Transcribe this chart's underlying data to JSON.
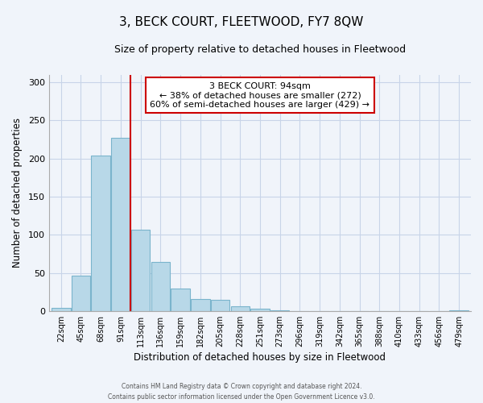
{
  "title": "3, BECK COURT, FLEETWOOD, FY7 8QW",
  "subtitle": "Size of property relative to detached houses in Fleetwood",
  "xlabel": "Distribution of detached houses by size in Fleetwood",
  "ylabel": "Number of detached properties",
  "footer_line1": "Contains HM Land Registry data © Crown copyright and database right 2024.",
  "footer_line2": "Contains public sector information licensed under the Open Government Licence v3.0.",
  "bar_labels": [
    "22sqm",
    "45sqm",
    "68sqm",
    "91sqm",
    "113sqm",
    "136sqm",
    "159sqm",
    "182sqm",
    "205sqm",
    "228sqm",
    "251sqm",
    "273sqm",
    "296sqm",
    "319sqm",
    "342sqm",
    "365sqm",
    "388sqm",
    "410sqm",
    "433sqm",
    "456sqm",
    "479sqm"
  ],
  "bar_heights": [
    4,
    46,
    204,
    227,
    107,
    64,
    29,
    16,
    15,
    6,
    3,
    1,
    0,
    0,
    0,
    0,
    0,
    0,
    0,
    0,
    1
  ],
  "bar_color": "#b8d8e8",
  "bar_edge_color": "#7ab4cc",
  "vline_color": "#cc0000",
  "annotation_title": "3 BECK COURT: 94sqm",
  "annotation_line1": "← 38% of detached houses are smaller (272)",
  "annotation_line2": "60% of semi-detached houses are larger (429) →",
  "annotation_box_color": "#ffffff",
  "annotation_box_edge": "#cc0000",
  "ylim": [
    0,
    310
  ],
  "yticks": [
    0,
    50,
    100,
    150,
    200,
    250,
    300
  ],
  "background_color": "#f0f4fa",
  "grid_color": "#c8d4e8",
  "title_fontsize": 11,
  "subtitle_fontsize": 9
}
